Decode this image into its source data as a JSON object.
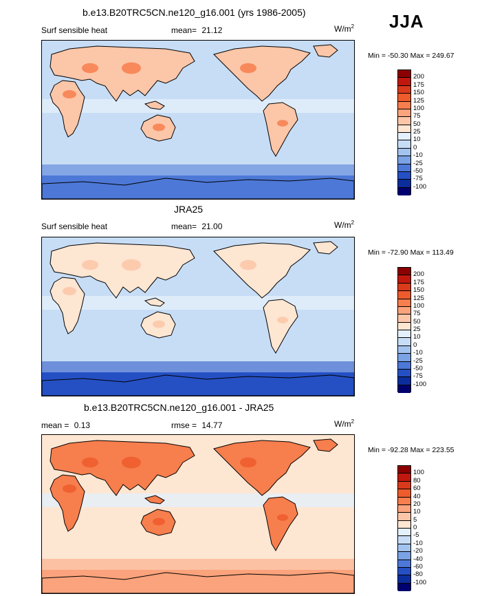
{
  "season": "JJA",
  "panels": [
    {
      "title": "b.e13.B20TRC5CN.ne120_g16.001 (yrs 1986-2005)",
      "left_label": "Surf sensible heat",
      "stat_label": "mean=",
      "stat_value": "21.12",
      "units": "W/m",
      "units_exp": "2",
      "minmax": "Min = -50.30 Max = 249.67",
      "colorbar_labels": [
        "200",
        "175",
        "150",
        "125",
        "100",
        "75",
        "50",
        "25",
        "10",
        "0",
        "-10",
        "-25",
        "-50",
        "-75",
        "-100"
      ],
      "colors": [
        "#8b0000",
        "#c0180f",
        "#d93a1c",
        "#ee5b2c",
        "#f77e4d",
        "#fba37c",
        "#fcc6a8",
        "#fde6d2",
        "#e4f0fb",
        "#c7ddf6",
        "#a3c3ef",
        "#7aa2e4",
        "#4d78d7",
        "#2550c4",
        "#0c2d9c",
        "#00006e"
      ],
      "ocean_color": "#c7ddf6",
      "land_color": "#fcc6a8",
      "land_hot_color": "#f77e4d",
      "south_band_color": "#4d78d7"
    },
    {
      "title": "JRA25",
      "left_label": "Surf sensible heat",
      "stat_label": "mean=",
      "stat_value": "21.00",
      "units": "W/m",
      "units_exp": "2",
      "minmax": "Min = -72.90 Max = 113.49",
      "colorbar_labels": [
        "200",
        "175",
        "150",
        "125",
        "100",
        "75",
        "50",
        "25",
        "10",
        "0",
        "-10",
        "-25",
        "-50",
        "-75",
        "-100"
      ],
      "colors": [
        "#8b0000",
        "#c0180f",
        "#d93a1c",
        "#ee5b2c",
        "#f77e4d",
        "#fba37c",
        "#fcc6a8",
        "#fde6d2",
        "#e4f0fb",
        "#c7ddf6",
        "#a3c3ef",
        "#7aa2e4",
        "#4d78d7",
        "#2550c4",
        "#0c2d9c",
        "#00006e"
      ],
      "ocean_color": "#c7ddf6",
      "land_color": "#fde6d2",
      "land_hot_color": "#fcc6a8",
      "south_band_color": "#2550c4"
    },
    {
      "title": "b.e13.B20TRC5CN.ne120_g16.001 - JRA25",
      "left_label": "mean =",
      "left_value": "0.13",
      "stat_label": "rmse =",
      "stat_value": "14.77",
      "units": "W/m",
      "units_exp": "2",
      "minmax": "Min = -92.28 Max = 223.55",
      "colorbar_labels": [
        "100",
        "80",
        "60",
        "40",
        "20",
        "10",
        "5",
        "0",
        "-5",
        "-10",
        "-20",
        "-40",
        "-60",
        "-80",
        "-100"
      ],
      "colors": [
        "#8b0000",
        "#c0180f",
        "#d93a1c",
        "#ee5b2c",
        "#f77e4d",
        "#fba37c",
        "#fcc6a8",
        "#fde6d2",
        "#e4f0fb",
        "#c7ddf6",
        "#a3c3ef",
        "#7aa2e4",
        "#4d78d7",
        "#2550c4",
        "#0c2d9c",
        "#00006e"
      ],
      "ocean_color": "#fde6d2",
      "land_color": "#f77e4d",
      "land_hot_color": "#ee5b2c",
      "south_band_color": "#fba37c"
    }
  ]
}
